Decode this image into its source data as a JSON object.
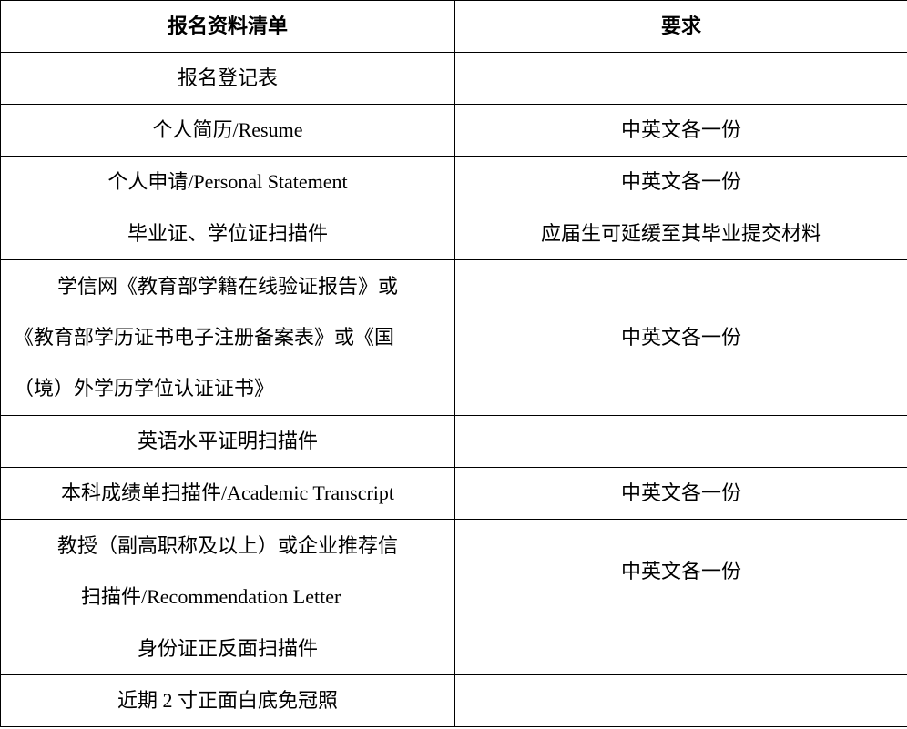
{
  "header": {
    "col1": "报名资料清单",
    "col2": "要求"
  },
  "rows": [
    {
      "item": [
        "报名登记表"
      ],
      "req": ""
    },
    {
      "item": [
        "个人简历/Resume"
      ],
      "req": "中英文各一份"
    },
    {
      "item": [
        "个人申请/Personal Statement"
      ],
      "req": "中英文各一份"
    },
    {
      "item": [
        "毕业证、学位证扫描件"
      ],
      "req": "应届生可延缓至其毕业提交材料"
    },
    {
      "item": [
        "学信网《教育部学籍在线验证报告》或",
        "《教育部学历证书电子注册备案表》或《国",
        "（境）外学历学位认证证书》"
      ],
      "req": "中英文各一份"
    },
    {
      "item": [
        "英语水平证明扫描件"
      ],
      "req": ""
    },
    {
      "item": [
        "本科成绩单扫描件/Academic Transcript"
      ],
      "req": "中英文各一份"
    },
    {
      "item": [
        "教授（副高职称及以上）或企业推荐信",
        "扫描件/Recommendation Letter"
      ],
      "req": "中英文各一份"
    },
    {
      "item": [
        "身份证正反面扫描件"
      ],
      "req": ""
    },
    {
      "item": [
        "近期 2 寸正面白底免冠照"
      ],
      "req": ""
    }
  ]
}
